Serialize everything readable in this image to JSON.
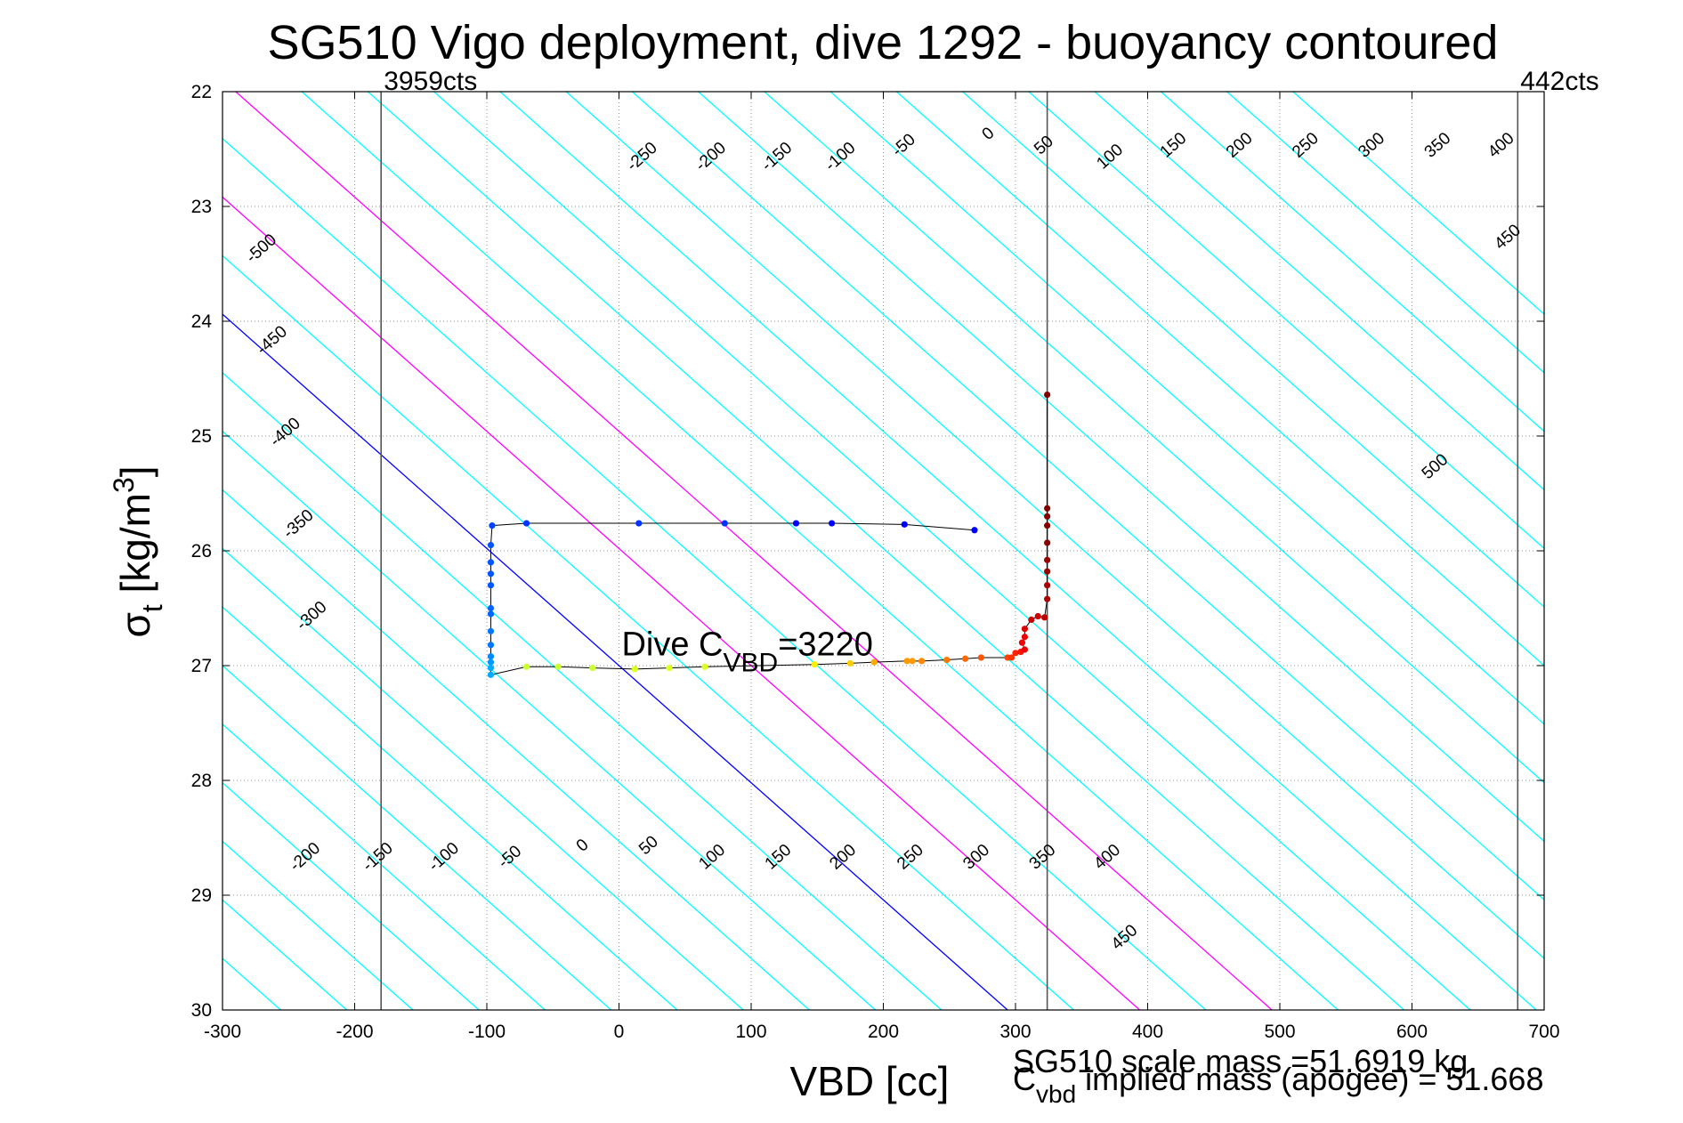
{
  "chart_data": {
    "type": "scatter",
    "title": "SG510 Vigo deployment, dive 1292 - buoyancy contoured",
    "xlabel": "VBD [cc]",
    "ylabel": {
      "sym": "σ",
      "sub": "t",
      "unit": " [kg/m",
      "sup": "3",
      "close": "]"
    },
    "xlim": [
      -300,
      700
    ],
    "ylim": [
      22,
      30
    ],
    "y_reversed": true,
    "grid": true,
    "xticks": [
      -300,
      -200,
      -100,
      0,
      100,
      200,
      300,
      400,
      500,
      600,
      700
    ],
    "yticks": [
      22,
      23,
      24,
      25,
      26,
      27,
      28,
      29,
      30
    ],
    "contour_slope_cc_per_sigma": 98,
    "vbd_count_lines": [
      {
        "x": -180,
        "label": "3959cts",
        "label_anchor": "start"
      },
      {
        "x": 324,
        "label": "",
        "label_anchor": "start"
      },
      {
        "x": 680,
        "label": "442cts",
        "label_anchor": "start"
      }
    ],
    "contours": [
      {
        "level": -600,
        "color": "#00ffff"
      },
      {
        "level": -550,
        "color": "#00ffff"
      },
      {
        "level": -500,
        "color": "#00ffff"
      },
      {
        "level": -450,
        "color": "#00ffff"
      },
      {
        "level": -400,
        "color": "#00ffff"
      },
      {
        "level": -350,
        "color": "#00ffff"
      },
      {
        "level": -300,
        "color": "#00ffff"
      },
      {
        "level": -250,
        "color": "#00ffff"
      },
      {
        "level": -200,
        "color": "#00ffff"
      },
      {
        "level": -150,
        "color": "#00ffff"
      },
      {
        "level": -100,
        "color": "#00ffff"
      },
      {
        "level": -50,
        "color": "#00ffff"
      },
      {
        "level": 0,
        "color": "#0000ff"
      },
      {
        "level": 50,
        "color": "#00ffff"
      },
      {
        "level": 100,
        "color": "#ff00ff"
      },
      {
        "level": 150,
        "color": "#00ffff"
      },
      {
        "level": 200,
        "color": "#ff00ff"
      },
      {
        "level": 250,
        "color": "#00ffff"
      },
      {
        "level": 300,
        "color": "#00ffff"
      },
      {
        "level": 350,
        "color": "#00ffff"
      },
      {
        "level": 400,
        "color": "#00ffff"
      },
      {
        "level": 450,
        "color": "#00ffff"
      },
      {
        "level": 500,
        "color": "#00ffff"
      },
      {
        "level": 550,
        "color": "#00ffff"
      },
      {
        "level": 600,
        "color": "#00ffff"
      },
      {
        "level": 650,
        "color": "#00ffff"
      },
      {
        "level": 700,
        "color": "#00ffff"
      },
      {
        "level": 750,
        "color": "#00ffff"
      },
      {
        "level": 800,
        "color": "#00ffff"
      },
      {
        "level": 850,
        "color": "#00ffff"
      },
      {
        "level": 900,
        "color": "#00ffff"
      },
      {
        "level": 950,
        "color": "#00ffff"
      },
      {
        "level": 1000,
        "color": "#00ffff"
      }
    ],
    "contour_labels": [
      {
        "text": "-250",
        "x": 20,
        "y": 22.6
      },
      {
        "text": "-200",
        "x": 72,
        "y": 22.6
      },
      {
        "text": "-150",
        "x": 122,
        "y": 22.6
      },
      {
        "text": "-100",
        "x": 170,
        "y": 22.6
      },
      {
        "text": "-50",
        "x": 218,
        "y": 22.5
      },
      {
        "text": "0",
        "x": 282,
        "y": 22.4
      },
      {
        "text": "50",
        "x": 324,
        "y": 22.5
      },
      {
        "text": "100",
        "x": 374,
        "y": 22.6
      },
      {
        "text": "150",
        "x": 422,
        "y": 22.5
      },
      {
        "text": "200",
        "x": 472,
        "y": 22.5
      },
      {
        "text": "250",
        "x": 522,
        "y": 22.5
      },
      {
        "text": "300",
        "x": 572,
        "y": 22.5
      },
      {
        "text": "350",
        "x": 622,
        "y": 22.5
      },
      {
        "text": "400",
        "x": 670,
        "y": 22.5
      },
      {
        "text": "450",
        "x": 675,
        "y": 23.3
      },
      {
        "text": "-500",
        "x": -268,
        "y": 23.4
      },
      {
        "text": "-450",
        "x": -260,
        "y": 24.2
      },
      {
        "text": "-400",
        "x": -250,
        "y": 25.0
      },
      {
        "text": "-350",
        "x": -240,
        "y": 25.8
      },
      {
        "text": "-300",
        "x": -230,
        "y": 26.6
      },
      {
        "text": "500",
        "x": 620,
        "y": 25.3
      },
      {
        "text": "-200",
        "x": -235,
        "y": 28.7
      },
      {
        "text": "-150",
        "x": -180,
        "y": 28.7
      },
      {
        "text": "-100",
        "x": -130,
        "y": 28.7
      },
      {
        "text": "-50",
        "x": -80,
        "y": 28.7
      },
      {
        "text": "0",
        "x": -25,
        "y": 28.6
      },
      {
        "text": "50",
        "x": 25,
        "y": 28.6
      },
      {
        "text": "100",
        "x": 73,
        "y": 28.7
      },
      {
        "text": "150",
        "x": 123,
        "y": 28.7
      },
      {
        "text": "200",
        "x": 172,
        "y": 28.7
      },
      {
        "text": "250",
        "x": 223,
        "y": 28.7
      },
      {
        "text": "300",
        "x": 273,
        "y": 28.7
      },
      {
        "text": "350",
        "x": 323,
        "y": 28.7
      },
      {
        "text": "400",
        "x": 372,
        "y": 28.7
      },
      {
        "text": "450",
        "x": 385,
        "y": 29.4
      }
    ],
    "series": [
      {
        "points": [
          {
            "x": 269,
            "y": 25.82,
            "c": "#0000ff"
          },
          {
            "x": 216,
            "y": 25.77,
            "c": "#0000ff"
          },
          {
            "x": 161,
            "y": 25.76,
            "c": "#0000ff"
          },
          {
            "x": 134,
            "y": 25.76,
            "c": "#0000ff"
          },
          {
            "x": 80,
            "y": 25.76,
            "c": "#0033ff"
          },
          {
            "x": 15,
            "y": 25.76,
            "c": "#0033ff"
          },
          {
            "x": -70,
            "y": 25.76,
            "c": "#0033ff"
          },
          {
            "x": -96,
            "y": 25.78,
            "c": "#0044ff"
          },
          {
            "x": -97,
            "y": 25.95,
            "c": "#0055ff"
          },
          {
            "x": -97,
            "y": 26.1,
            "c": "#0055ff"
          },
          {
            "x": -97,
            "y": 26.2,
            "c": "#0055ff"
          },
          {
            "x": -97,
            "y": 26.3,
            "c": "#0055ff"
          },
          {
            "x": -97,
            "y": 26.5,
            "c": "#0066ff"
          },
          {
            "x": -97,
            "y": 26.55,
            "c": "#0066ff"
          },
          {
            "x": -97,
            "y": 26.7,
            "c": "#0077ff"
          },
          {
            "x": -97,
            "y": 26.82,
            "c": "#0077ff"
          },
          {
            "x": -97,
            "y": 26.92,
            "c": "#0088ff"
          },
          {
            "x": -97,
            "y": 26.97,
            "c": "#0099ff"
          },
          {
            "x": -97,
            "y": 27.02,
            "c": "#00aaff"
          },
          {
            "x": -97,
            "y": 27.08,
            "c": "#00aaff"
          },
          {
            "x": -70,
            "y": 27.01,
            "c": "#ccff33"
          },
          {
            "x": -46,
            "y": 27.01,
            "c": "#ccff33"
          },
          {
            "x": -20,
            "y": 27.02,
            "c": "#ccff33"
          },
          {
            "x": 12,
            "y": 27.03,
            "c": "#ddff22"
          },
          {
            "x": 38,
            "y": 27.02,
            "c": "#ddff22"
          },
          {
            "x": 65,
            "y": 27.01,
            "c": "#ddff22"
          },
          {
            "x": 148,
            "y": 26.99,
            "c": "#ffee00"
          },
          {
            "x": 175,
            "y": 26.98,
            "c": "#ffcc00"
          },
          {
            "x": 193,
            "y": 26.97,
            "c": "#ffaa00"
          },
          {
            "x": 218,
            "y": 26.96,
            "c": "#ff9900"
          },
          {
            "x": 222,
            "y": 26.96,
            "c": "#ff9900"
          },
          {
            "x": 229,
            "y": 26.96,
            "c": "#ff8800"
          },
          {
            "x": 248,
            "y": 26.95,
            "c": "#ff7700"
          },
          {
            "x": 262,
            "y": 26.94,
            "c": "#ff6600"
          },
          {
            "x": 274,
            "y": 26.93,
            "c": "#ff5500"
          },
          {
            "x": 294,
            "y": 26.93,
            "c": "#ff4400"
          },
          {
            "x": 297,
            "y": 26.93,
            "c": "#ff3300"
          },
          {
            "x": 300,
            "y": 26.89,
            "c": "#ff2200"
          },
          {
            "x": 304,
            "y": 26.88,
            "c": "#ff1100"
          },
          {
            "x": 307,
            "y": 26.86,
            "c": "#ee0000"
          },
          {
            "x": 305,
            "y": 26.8,
            "c": "#ee0000"
          },
          {
            "x": 307,
            "y": 26.75,
            "c": "#ee0000"
          },
          {
            "x": 307,
            "y": 26.68,
            "c": "#dd0000"
          },
          {
            "x": 312,
            "y": 26.6,
            "c": "#cc0000"
          },
          {
            "x": 317,
            "y": 26.57,
            "c": "#cc0000"
          },
          {
            "x": 322,
            "y": 26.58,
            "c": "#bb0000"
          },
          {
            "x": 324,
            "y": 26.42,
            "c": "#aa0000"
          },
          {
            "x": 324,
            "y": 26.3,
            "c": "#aa0000"
          },
          {
            "x": 324,
            "y": 26.18,
            "c": "#990000"
          },
          {
            "x": 324,
            "y": 26.08,
            "c": "#990000"
          },
          {
            "x": 324,
            "y": 25.93,
            "c": "#880000"
          },
          {
            "x": 324,
            "y": 25.78,
            "c": "#880000"
          },
          {
            "x": 324,
            "y": 25.7,
            "c": "#880000"
          },
          {
            "x": 324,
            "y": 25.63,
            "c": "#800000"
          },
          {
            "x": 324,
            "y": 24.64,
            "c": "#800000"
          }
        ]
      }
    ],
    "annotations": {
      "dive_cvbd": {
        "main": "Dive C",
        "sub": "VBD",
        "rest": "=3220",
        "x": 2,
        "y": 26.91
      },
      "scale_mass": "SG510 scale mass =51.6919 kg",
      "implied_mass": {
        "main": "C",
        "sub": "vbd",
        "rest": " implied mass (apogee) = 51.668"
      }
    }
  }
}
